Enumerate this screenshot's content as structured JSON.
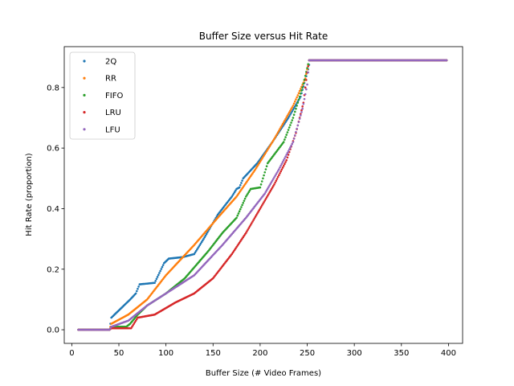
{
  "chart_data": {
    "type": "scatter",
    "title": "Buffer Size versus Hit Rate",
    "xlabel": "Buffer Size (# Video Frames)",
    "ylabel": "Hit Rate (proportion)",
    "xlim": [
      -8,
      415
    ],
    "ylim": [
      -0.045,
      0.935
    ],
    "xticks": [
      0,
      50,
      100,
      150,
      200,
      250,
      300,
      350,
      400
    ],
    "yticks": [
      0.0,
      0.2,
      0.4,
      0.6,
      0.8
    ],
    "ytick_labels": [
      "0.0",
      "0.2",
      "0.4",
      "0.6",
      "0.8"
    ],
    "x_start": 7,
    "x_end": 398,
    "x_step": 1,
    "plateau_value": 0.89,
    "legend_position": "upper-left",
    "grid": false,
    "series": [
      {
        "name": "2Q",
        "color": "#1f77b4",
        "points": [
          [
            7,
            0.0
          ],
          [
            40,
            0.0
          ],
          [
            42,
            0.04
          ],
          [
            52,
            0.07
          ],
          [
            62,
            0.1
          ],
          [
            68,
            0.12
          ],
          [
            72,
            0.15
          ],
          [
            88,
            0.155
          ],
          [
            98,
            0.22
          ],
          [
            103,
            0.235
          ],
          [
            118,
            0.24
          ],
          [
            130,
            0.25
          ],
          [
            140,
            0.3
          ],
          [
            155,
            0.38
          ],
          [
            170,
            0.44
          ],
          [
            175,
            0.465
          ],
          [
            178,
            0.47
          ],
          [
            182,
            0.5
          ],
          [
            197,
            0.55
          ],
          [
            213,
            0.62
          ],
          [
            230,
            0.7
          ],
          [
            243,
            0.77
          ],
          [
            251,
            0.86
          ],
          [
            253,
            0.89
          ],
          [
            398,
            0.89
          ]
        ]
      },
      {
        "name": "RR",
        "color": "#ff7f0e",
        "points": [
          [
            7,
            0.0
          ],
          [
            40,
            0.0
          ],
          [
            42,
            0.02
          ],
          [
            60,
            0.05
          ],
          [
            80,
            0.1
          ],
          [
            100,
            0.18
          ],
          [
            130,
            0.28
          ],
          [
            155,
            0.37
          ],
          [
            175,
            0.44
          ],
          [
            195,
            0.53
          ],
          [
            215,
            0.63
          ],
          [
            235,
            0.74
          ],
          [
            248,
            0.83
          ],
          [
            252,
            0.89
          ],
          [
            398,
            0.89
          ]
        ]
      },
      {
        "name": "FIFO",
        "color": "#2ca02c",
        "points": [
          [
            7,
            0.0
          ],
          [
            40,
            0.0
          ],
          [
            42,
            0.01
          ],
          [
            58,
            0.01
          ],
          [
            62,
            0.02
          ],
          [
            70,
            0.05
          ],
          [
            80,
            0.08
          ],
          [
            100,
            0.12
          ],
          [
            120,
            0.17
          ],
          [
            145,
            0.26
          ],
          [
            160,
            0.32
          ],
          [
            175,
            0.37
          ],
          [
            185,
            0.44
          ],
          [
            190,
            0.465
          ],
          [
            200,
            0.47
          ],
          [
            208,
            0.55
          ],
          [
            225,
            0.62
          ],
          [
            235,
            0.7
          ],
          [
            245,
            0.8
          ],
          [
            252,
            0.89
          ],
          [
            398,
            0.89
          ]
        ]
      },
      {
        "name": "LRU",
        "color": "#d62728",
        "points": [
          [
            7,
            0.0
          ],
          [
            40,
            0.0
          ],
          [
            42,
            0.005
          ],
          [
            63,
            0.005
          ],
          [
            70,
            0.04
          ],
          [
            88,
            0.05
          ],
          [
            110,
            0.09
          ],
          [
            130,
            0.12
          ],
          [
            150,
            0.17
          ],
          [
            170,
            0.25
          ],
          [
            185,
            0.32
          ],
          [
            200,
            0.4
          ],
          [
            215,
            0.48
          ],
          [
            228,
            0.56
          ],
          [
            238,
            0.65
          ],
          [
            246,
            0.75
          ],
          [
            250,
            0.85
          ],
          [
            252,
            0.89
          ],
          [
            398,
            0.89
          ]
        ]
      },
      {
        "name": "LFU",
        "color": "#9467bd",
        "points": [
          [
            7,
            0.0
          ],
          [
            40,
            0.0
          ],
          [
            42,
            0.01
          ],
          [
            60,
            0.03
          ],
          [
            80,
            0.08
          ],
          [
            100,
            0.12
          ],
          [
            130,
            0.18
          ],
          [
            160,
            0.28
          ],
          [
            185,
            0.37
          ],
          [
            205,
            0.45
          ],
          [
            220,
            0.53
          ],
          [
            235,
            0.62
          ],
          [
            245,
            0.73
          ],
          [
            250,
            0.81
          ],
          [
            252,
            0.89
          ],
          [
            398,
            0.89
          ]
        ]
      }
    ]
  }
}
